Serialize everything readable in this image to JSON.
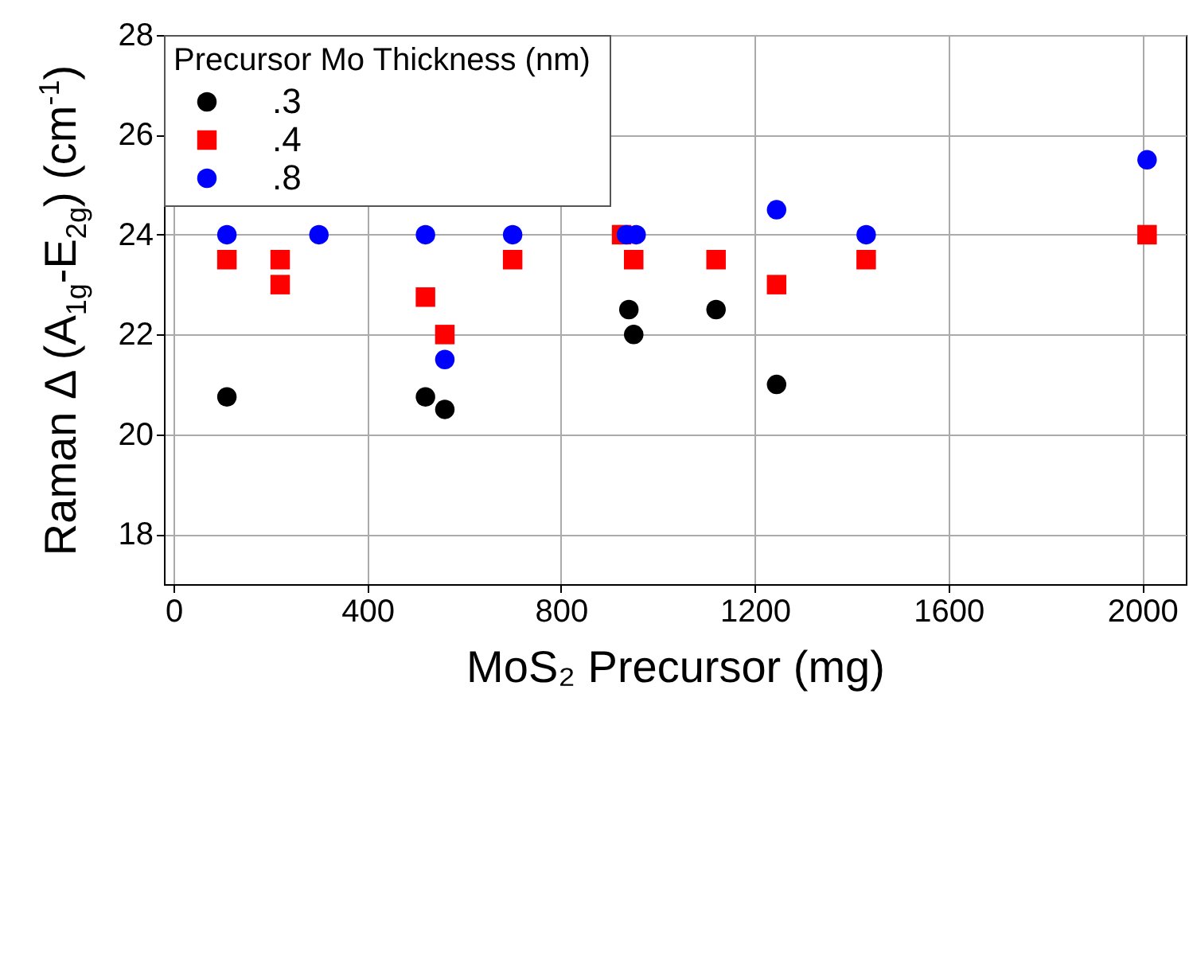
{
  "chart_data": {
    "type": "scatter",
    "xlabel": "MoS₂ Precursor (mg)",
    "ylabel": "Raman Δ (A$_{1g}$-E$_{2g}$) (cm$^{-1}$)",
    "legend_title": "Precursor Mo Thickness  (nm)",
    "xlim": [
      -20,
      2090
    ],
    "ylim": [
      17,
      28
    ],
    "xticks": [
      0,
      400,
      800,
      1200,
      1600,
      2000
    ],
    "yticks": [
      18,
      20,
      22,
      24,
      26,
      28
    ],
    "grid": true,
    "legend": "top left",
    "series": [
      {
        "name": ".3",
        "color": "#000000",
        "marker": "circle",
        "x": [
          110,
          520,
          560,
          940,
          950,
          1120,
          1245
        ],
        "values": [
          20.75,
          20.75,
          20.5,
          22.5,
          22,
          22.5,
          21
        ]
      },
      {
        "name": ".4",
        "color": "#ff0000",
        "marker": "square",
        "x": [
          110,
          220,
          220,
          520,
          560,
          700,
          925,
          950,
          1120,
          1245,
          1430,
          2010
        ],
        "values": [
          23.5,
          23.5,
          23,
          22.75,
          22,
          23.5,
          24,
          23.5,
          23.5,
          23,
          23.5,
          24
        ]
      },
      {
        "name": ".8",
        "color": "#0000ff",
        "marker": "circle",
        "x": [
          110,
          300,
          520,
          560,
          700,
          935,
          955,
          1245,
          1430,
          2010
        ],
        "values": [
          24,
          24,
          24,
          21.5,
          24,
          24,
          24,
          24.5,
          24,
          25.5
        ]
      }
    ]
  }
}
